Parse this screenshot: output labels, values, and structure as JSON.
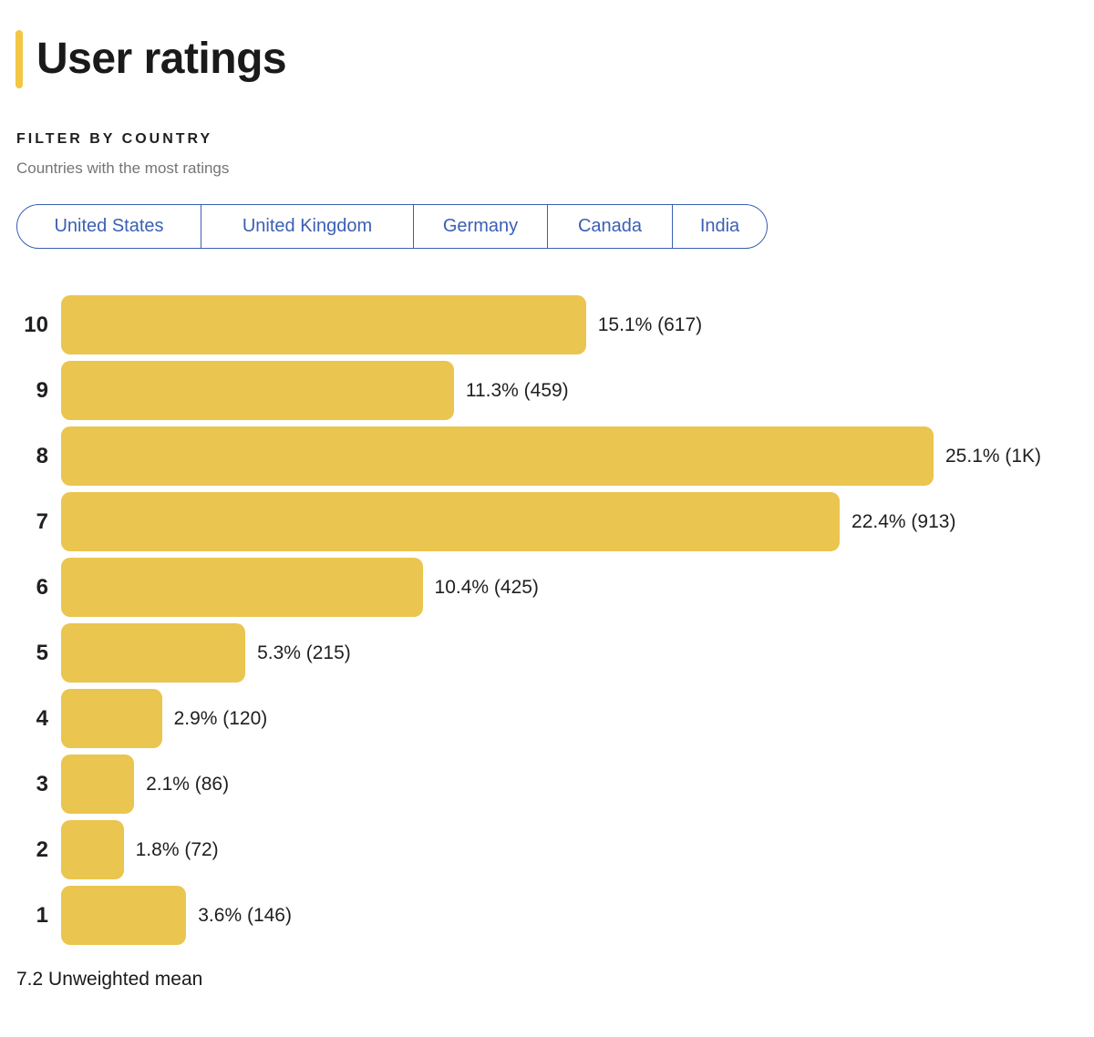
{
  "page": {
    "title": "User ratings"
  },
  "filter": {
    "label": "FILTER BY COUNTRY",
    "sublabel": "Countries with the most ratings",
    "countries": [
      "United States",
      "United Kingdom",
      "Germany",
      "Canada",
      "India"
    ]
  },
  "chart_data": {
    "type": "bar",
    "orientation": "horizontal",
    "title": "User ratings",
    "categories": [
      "10",
      "9",
      "8",
      "7",
      "6",
      "5",
      "4",
      "3",
      "2",
      "1"
    ],
    "values_percent": [
      15.1,
      11.3,
      25.1,
      22.4,
      10.4,
      5.3,
      2.9,
      2.1,
      1.8,
      3.6
    ],
    "counts": [
      "617",
      "459",
      "1K",
      "913",
      "425",
      "215",
      "120",
      "86",
      "72",
      "146"
    ],
    "labels": [
      "15.1% (617)",
      "11.3% (459)",
      "25.1% (1K)",
      "22.4% (913)",
      "10.4% (425)",
      "5.3% (215)",
      "2.9% (120)",
      "2.1% (86)",
      "1.8% (72)",
      "3.6% (146)"
    ],
    "xlim": [
      0,
      25.1
    ],
    "grid": false,
    "legend": false,
    "bar_color": "#EAC54F"
  },
  "footer": {
    "mean_text": "7.2 Unweighted mean"
  },
  "colors": {
    "accent_yellow": "#F2C744",
    "bar_yellow": "#EAC54F",
    "pill_blue": "#3A5FB4",
    "text_dark": "#1F1F1F",
    "text_gray": "#757575"
  }
}
